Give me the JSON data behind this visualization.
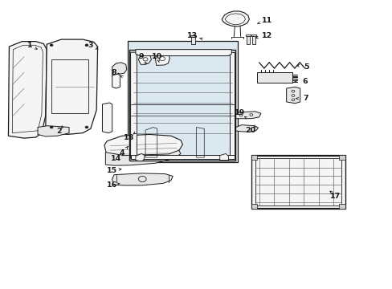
{
  "bg_color": "#ffffff",
  "fig_width": 4.89,
  "fig_height": 3.6,
  "dpi": 100,
  "line_color": "#1a1a1a",
  "fill_light": "#f5f5f5",
  "fill_medium": "#e8e8e8",
  "fill_shade": "#d0d0d0",
  "label_positions": {
    "1": [
      0.075,
      0.845,
      0.095,
      0.83
    ],
    "2": [
      0.15,
      0.545,
      0.155,
      0.555
    ],
    "3": [
      0.23,
      0.845,
      0.25,
      0.83
    ],
    "4": [
      0.31,
      0.47,
      0.33,
      0.5
    ],
    "5": [
      0.78,
      0.77,
      0.755,
      0.775
    ],
    "6": [
      0.778,
      0.72,
      0.75,
      0.72
    ],
    "7": [
      0.78,
      0.66,
      0.753,
      0.66
    ],
    "8": [
      0.29,
      0.75,
      0.305,
      0.74
    ],
    "9": [
      0.36,
      0.805,
      0.368,
      0.788
    ],
    "10": [
      0.4,
      0.805,
      0.405,
      0.785
    ],
    "11": [
      0.68,
      0.93,
      0.655,
      0.92
    ],
    "12": [
      0.68,
      0.878,
      0.65,
      0.87
    ],
    "13": [
      0.49,
      0.878,
      0.508,
      0.87
    ],
    "14": [
      0.295,
      0.45,
      0.315,
      0.47
    ],
    "15": [
      0.285,
      0.41,
      0.31,
      0.415
    ],
    "16": [
      0.285,
      0.36,
      0.305,
      0.365
    ],
    "17": [
      0.855,
      0.32,
      0.84,
      0.34
    ],
    "18": [
      0.328,
      0.525,
      0.338,
      0.535
    ],
    "19": [
      0.61,
      0.61,
      0.622,
      0.598
    ],
    "20": [
      0.638,
      0.55,
      0.645,
      0.558
    ]
  }
}
